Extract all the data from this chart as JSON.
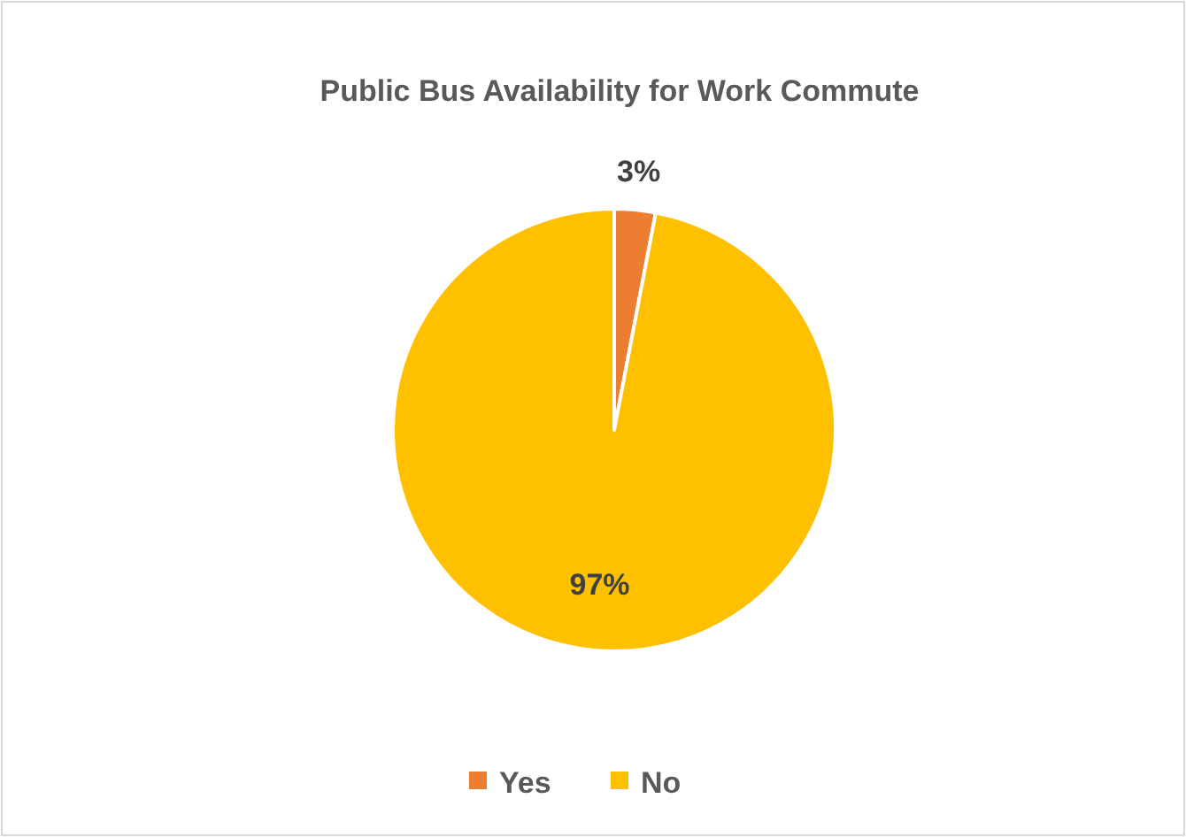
{
  "chart_data": {
    "type": "pie",
    "title": "Public Bus Availability for Work Commute",
    "categories": [
      "Yes",
      "No"
    ],
    "values": [
      3,
      97
    ],
    "colors": [
      "#ed7d31",
      "#ffc000"
    ],
    "value_labels": [
      "3%",
      "97%"
    ],
    "legend": "bottom"
  }
}
